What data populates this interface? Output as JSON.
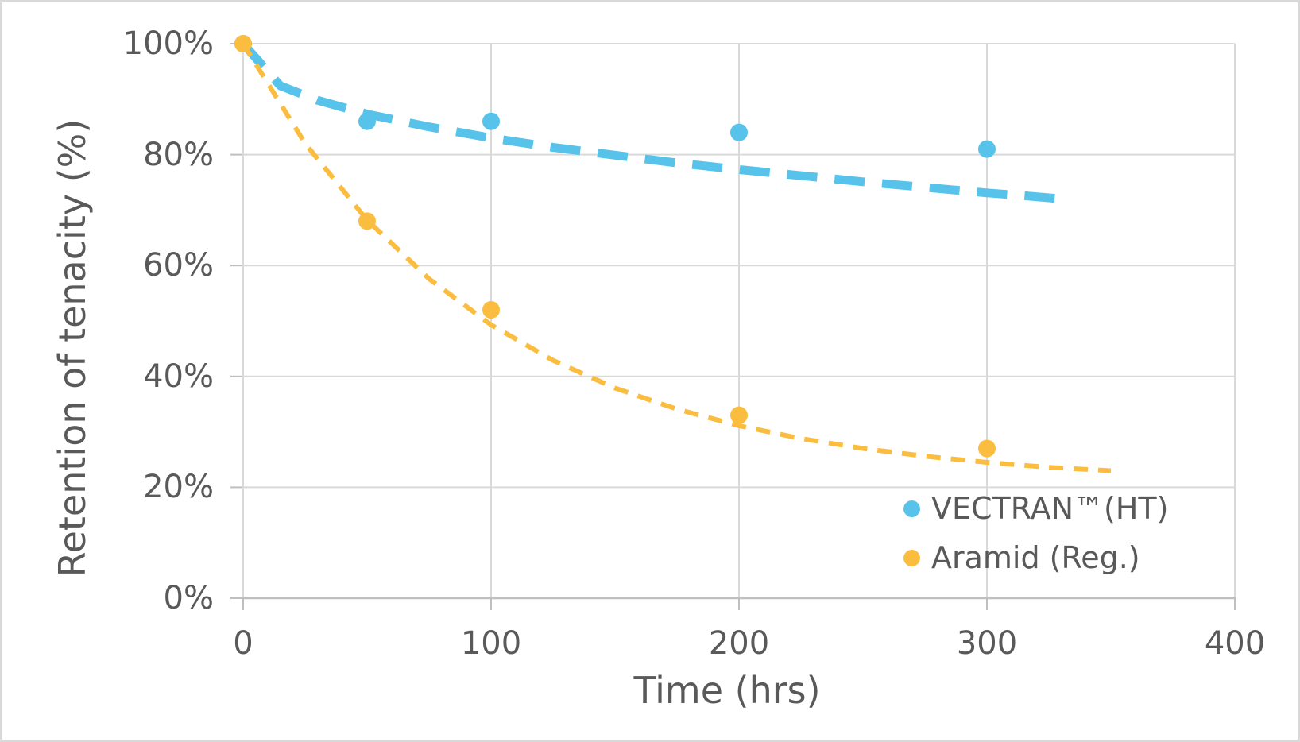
{
  "chart_data": {
    "type": "scatter",
    "title": "",
    "xlabel": "Time (hrs)",
    "ylabel": "Retention of tenacity (%)",
    "xlim": [
      0,
      400
    ],
    "ylim": [
      0,
      100
    ],
    "grid": true,
    "legend_position": "inside-bottom-right",
    "x_ticks": [
      {
        "label": "0",
        "value": 0
      },
      {
        "label": "100",
        "value": 100
      },
      {
        "label": "200",
        "value": 200
      },
      {
        "label": "300",
        "value": 300
      },
      {
        "label": "400",
        "value": 400
      }
    ],
    "y_ticks": [
      {
        "label": "100%",
        "value": 100
      },
      {
        "label": "80%",
        "value": 80
      },
      {
        "label": "60%",
        "value": 60
      },
      {
        "label": "40%",
        "value": 40
      },
      {
        "label": "20%",
        "value": 20
      },
      {
        "label": "0%",
        "value": 0
      }
    ],
    "series": [
      {
        "name": "VECTRAN™(HT)",
        "color": "#57C3EB",
        "marker": "circle",
        "points": [
          [
            0,
            100
          ],
          [
            50,
            86
          ],
          [
            100,
            86
          ],
          [
            200,
            84
          ],
          [
            300,
            81
          ]
        ],
        "trend_style": "dashed",
        "trend": [
          [
            0,
            100
          ],
          [
            15,
            92.4
          ],
          [
            30,
            89.8
          ],
          [
            50,
            87.3
          ],
          [
            75,
            85.0
          ],
          [
            100,
            83.0
          ],
          [
            125,
            81.3
          ],
          [
            150,
            79.9
          ],
          [
            175,
            78.5
          ],
          [
            200,
            77.3
          ],
          [
            225,
            76.2
          ],
          [
            250,
            75.1
          ],
          [
            275,
            74.1
          ],
          [
            300,
            73.1
          ],
          [
            315,
            72.6
          ],
          [
            330,
            72.0
          ]
        ]
      },
      {
        "name": "Aramid (Reg.)",
        "color": "#FBBD3F",
        "marker": "circle",
        "points": [
          [
            0,
            100
          ],
          [
            50,
            68
          ],
          [
            100,
            52
          ],
          [
            200,
            33
          ],
          [
            300,
            27
          ]
        ],
        "trend_style": "dashed",
        "trend": [
          [
            0,
            100
          ],
          [
            25,
            82.0
          ],
          [
            50,
            68.2
          ],
          [
            75,
            57.6
          ],
          [
            100,
            49.3
          ],
          [
            125,
            42.9
          ],
          [
            150,
            37.9
          ],
          [
            175,
            34.1
          ],
          [
            200,
            31.1
          ],
          [
            225,
            28.8
          ],
          [
            250,
            27.0
          ],
          [
            275,
            25.6
          ],
          [
            300,
            24.5
          ],
          [
            325,
            23.6
          ],
          [
            350,
            23.0
          ]
        ]
      }
    ],
    "colors": {
      "gridline": "#D9D9D9",
      "axis_line": "#BFBFBF",
      "text": "#595959"
    }
  }
}
